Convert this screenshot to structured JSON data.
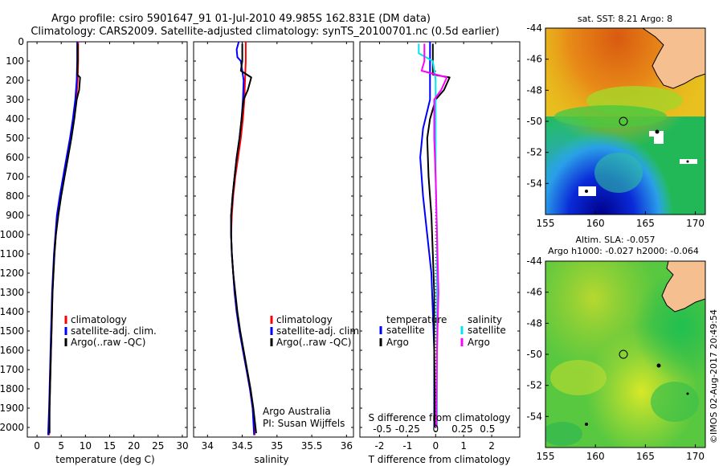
{
  "header": {
    "line1": "Argo profile: csiro 5901647_91 01-Jul-2010 49.985S 162.831E (DM data)",
    "line2": "Climatology: CARS2009. Satellite-adjusted climatology: synTS_20100701.nc (0.5d earlier)"
  },
  "colors": {
    "climatology": "#ff0000",
    "satellite": "#0000ff",
    "argo": "#000000",
    "salinity_satellite": "#00e5ee",
    "salinity_argo": "#ff00ff",
    "land": "#f5bf90"
  },
  "depth_ticks": [
    0,
    100,
    200,
    300,
    400,
    500,
    600,
    700,
    800,
    900,
    1000,
    1100,
    1200,
    1300,
    1400,
    1500,
    1600,
    1700,
    1800,
    1900,
    2000
  ],
  "chart_data": [
    {
      "type": "line",
      "panel": "temperature",
      "xlabel": "temperature (deg C)",
      "xlim": [
        -2,
        31
      ],
      "ylim": [
        2050,
        0
      ],
      "xticks": [
        0,
        5,
        10,
        15,
        20,
        25,
        30
      ],
      "legend": [
        "climatology",
        "satellite-adj. clim.",
        "Argo(..raw -QC)"
      ],
      "series": [
        {
          "name": "climatology",
          "color_key": "climatology",
          "points": [
            [
              8.5,
              0
            ],
            [
              8.5,
              100
            ],
            [
              8.4,
              200
            ],
            [
              8.1,
              300
            ],
            [
              7.6,
              400
            ],
            [
              7.0,
              500
            ],
            [
              6.3,
              600
            ],
            [
              5.6,
              700
            ],
            [
              4.9,
              800
            ],
            [
              4.3,
              900
            ],
            [
              3.9,
              1000
            ],
            [
              3.6,
              1100
            ],
            [
              3.4,
              1200
            ],
            [
              3.2,
              1300
            ],
            [
              3.1,
              1400
            ],
            [
              3.0,
              1500
            ],
            [
              2.9,
              1600
            ],
            [
              2.8,
              1700
            ],
            [
              2.7,
              1800
            ],
            [
              2.6,
              1900
            ],
            [
              2.5,
              2040
            ]
          ]
        },
        {
          "name": "satellite-adj. clim.",
          "color_key": "satellite",
          "points": [
            [
              8.3,
              0
            ],
            [
              8.3,
              100
            ],
            [
              8.2,
              200
            ],
            [
              7.9,
              300
            ],
            [
              7.4,
              400
            ],
            [
              6.8,
              500
            ],
            [
              6.1,
              600
            ],
            [
              5.4,
              700
            ],
            [
              4.7,
              800
            ],
            [
              4.1,
              900
            ],
            [
              3.8,
              1000
            ],
            [
              3.5,
              1100
            ],
            [
              3.3,
              1200
            ],
            [
              3.1,
              1300
            ],
            [
              3.0,
              1400
            ],
            [
              2.9,
              1500
            ],
            [
              2.8,
              1600
            ],
            [
              2.7,
              1700
            ],
            [
              2.6,
              1800
            ],
            [
              2.5,
              1900
            ],
            [
              2.3,
              2040
            ]
          ]
        },
        {
          "name": "Argo(..raw -QC)",
          "color_key": "argo",
          "points": [
            [
              8.4,
              10
            ],
            [
              8.4,
              100
            ],
            [
              8.3,
              170
            ],
            [
              8.9,
              185
            ],
            [
              8.7,
              250
            ],
            [
              8.2,
              300
            ],
            [
              7.7,
              400
            ],
            [
              7.1,
              500
            ],
            [
              6.4,
              600
            ],
            [
              5.7,
              700
            ],
            [
              5.0,
              800
            ],
            [
              4.4,
              900
            ],
            [
              3.9,
              1000
            ],
            [
              3.6,
              1100
            ],
            [
              3.4,
              1200
            ],
            [
              3.2,
              1300
            ],
            [
              3.1,
              1400
            ],
            [
              3.0,
              1500
            ],
            [
              2.9,
              1600
            ],
            [
              2.8,
              1700
            ],
            [
              2.7,
              1800
            ],
            [
              2.6,
              1900
            ],
            [
              2.6,
              2030
            ]
          ]
        }
      ]
    },
    {
      "type": "line",
      "panel": "salinity",
      "xlabel": "salinity",
      "xlim": [
        33.8,
        36.1
      ],
      "ylim": [
        2050,
        0
      ],
      "xticks": [
        34,
        34.5,
        35,
        35.5,
        36
      ],
      "xticklabels": [
        "34",
        "34.5",
        "35",
        "35.5",
        "36"
      ],
      "legend": [
        "climatology",
        "satellite-adj. clim.",
        "Argo(..raw -QC)"
      ],
      "annotation": [
        "Argo Australia",
        "PI: Susan Wijffels"
      ],
      "series": [
        {
          "name": "climatology",
          "color_key": "climatology",
          "points": [
            [
              34.55,
              0
            ],
            [
              34.55,
              100
            ],
            [
              34.54,
              200
            ],
            [
              34.53,
              300
            ],
            [
              34.51,
              400
            ],
            [
              34.48,
              500
            ],
            [
              34.44,
              600
            ],
            [
              34.4,
              700
            ],
            [
              34.37,
              800
            ],
            [
              34.35,
              900
            ],
            [
              34.34,
              1000
            ],
            [
              34.35,
              1100
            ],
            [
              34.37,
              1200
            ],
            [
              34.39,
              1300
            ],
            [
              34.42,
              1400
            ],
            [
              34.46,
              1500
            ],
            [
              34.51,
              1600
            ],
            [
              34.56,
              1700
            ],
            [
              34.61,
              1800
            ],
            [
              34.65,
              1900
            ],
            [
              34.68,
              2040
            ]
          ]
        },
        {
          "name": "satellite-adj. clim.",
          "color_key": "satellite",
          "points": [
            [
              34.45,
              0
            ],
            [
              34.42,
              40
            ],
            [
              34.43,
              80
            ],
            [
              34.48,
              100
            ],
            [
              34.52,
              200
            ],
            [
              34.51,
              300
            ],
            [
              34.49,
              400
            ],
            [
              34.46,
              500
            ],
            [
              34.42,
              600
            ],
            [
              34.39,
              700
            ],
            [
              34.36,
              800
            ],
            [
              34.34,
              900
            ],
            [
              34.34,
              1000
            ],
            [
              34.35,
              1100
            ],
            [
              34.37,
              1200
            ],
            [
              34.39,
              1300
            ],
            [
              34.42,
              1400
            ],
            [
              34.46,
              1500
            ],
            [
              34.51,
              1600
            ],
            [
              34.56,
              1700
            ],
            [
              34.61,
              1800
            ],
            [
              34.65,
              1900
            ],
            [
              34.67,
              2040
            ]
          ]
        },
        {
          "name": "Argo(..raw -QC)",
          "color_key": "argo",
          "points": [
            [
              34.5,
              10
            ],
            [
              34.5,
              100
            ],
            [
              34.48,
              150
            ],
            [
              34.63,
              185
            ],
            [
              34.58,
              250
            ],
            [
              34.52,
              300
            ],
            [
              34.49,
              400
            ],
            [
              34.46,
              500
            ],
            [
              34.42,
              600
            ],
            [
              34.39,
              700
            ],
            [
              34.36,
              800
            ],
            [
              34.34,
              900
            ],
            [
              34.34,
              1000
            ],
            [
              34.35,
              1100
            ],
            [
              34.37,
              1200
            ],
            [
              34.4,
              1300
            ],
            [
              34.43,
              1400
            ],
            [
              34.47,
              1500
            ],
            [
              34.52,
              1600
            ],
            [
              34.57,
              1700
            ],
            [
              34.62,
              1800
            ],
            [
              34.66,
              1900
            ],
            [
              34.7,
              2030
            ]
          ]
        }
      ]
    },
    {
      "type": "line",
      "panel": "difference",
      "xlabel": "T difference from climatology",
      "xlim": [
        -2.7,
        3.0
      ],
      "ylim": [
        2050,
        0
      ],
      "xticks": [
        -2,
        -1,
        0,
        1,
        2
      ],
      "top_label": "S difference from climatology",
      "top_ticks": [
        "-0.5",
        "-0.25",
        "0",
        "0.25",
        "0.5"
      ],
      "legend": {
        "temperature": [
          "satellite",
          "Argo"
        ],
        "salinity": [
          "satellite",
          "Argo"
        ]
      },
      "series": [
        {
          "name": "temperature satellite",
          "color_key": "satellite",
          "points": [
            [
              -0.2,
              0
            ],
            [
              -0.2,
              100
            ],
            [
              -0.2,
              200
            ],
            [
              -0.2,
              300
            ],
            [
              -0.45,
              450
            ],
            [
              -0.55,
              600
            ],
            [
              -0.45,
              800
            ],
            [
              -0.3,
              1000
            ],
            [
              -0.15,
              1200
            ],
            [
              -0.1,
              1400
            ],
            [
              -0.05,
              1600
            ],
            [
              -0.05,
              1800
            ],
            [
              -0.05,
              2000
            ]
          ]
        },
        {
          "name": "temperature Argo",
          "color_key": "argo",
          "points": [
            [
              -0.1,
              10
            ],
            [
              -0.1,
              100
            ],
            [
              -0.1,
              170
            ],
            [
              0.5,
              185
            ],
            [
              0.3,
              250
            ],
            [
              0.0,
              300
            ],
            [
              -0.2,
              400
            ],
            [
              -0.3,
              500
            ],
            [
              -0.25,
              700
            ],
            [
              -0.15,
              900
            ],
            [
              -0.1,
              1100
            ],
            [
              -0.05,
              1300
            ],
            [
              -0.05,
              1600
            ],
            [
              -0.03,
              1800
            ],
            [
              -0.03,
              2000
            ]
          ]
        },
        {
          "name": "salinity satellite",
          "color_key": "salinity_satellite",
          "points": [
            [
              -0.6,
              10
            ],
            [
              -0.6,
              60
            ],
            [
              -0.1,
              100
            ],
            [
              0.0,
              200
            ],
            [
              0.0,
              400
            ],
            [
              0.0,
              700
            ],
            [
              0.05,
              1000
            ],
            [
              0.05,
              1300
            ],
            [
              0.05,
              1600
            ],
            [
              0.05,
              1900
            ],
            [
              0.05,
              2000
            ]
          ]
        },
        {
          "name": "salinity Argo",
          "color_key": "salinity_argo",
          "points": [
            [
              -0.4,
              10
            ],
            [
              -0.4,
              100
            ],
            [
              -0.5,
              150
            ],
            [
              0.4,
              185
            ],
            [
              0.2,
              250
            ],
            [
              -0.05,
              300
            ],
            [
              -0.05,
              500
            ],
            [
              0.0,
              700
            ],
            [
              0.05,
              1000
            ],
            [
              0.1,
              1300
            ],
            [
              0.05,
              1600
            ],
            [
              0.03,
              1900
            ],
            [
              0.03,
              2000
            ]
          ]
        }
      ]
    },
    {
      "type": "heatmap",
      "panel": "sst_map",
      "title": "sat. SST: 8.21  Argo: 8",
      "xlim": [
        155,
        171
      ],
      "ylim": [
        -56,
        -44
      ],
      "xticks": [
        155,
        160,
        165,
        170
      ],
      "yticks": [
        -44,
        -46,
        -48,
        -50,
        -52,
        -54
      ],
      "marker": {
        "lon": 162.8,
        "lat": -50.0
      },
      "land": "New Zealand (south-east corner)"
    },
    {
      "type": "heatmap",
      "panel": "sla_map",
      "title": "Altim. SLA: -0.057",
      "subtitle": "Argo h1000: -0.027 h2000: -0.064",
      "xlim": [
        155,
        171
      ],
      "ylim": [
        -56,
        -44
      ],
      "xticks": [
        155,
        160,
        165,
        170
      ],
      "yticks": [
        -44,
        -46,
        -48,
        -50,
        -52,
        -54
      ],
      "marker": {
        "lon": 162.8,
        "lat": -50.0
      },
      "land": "New Zealand (south-east corner)"
    }
  ],
  "credit": "©IMOS 02-Aug-2017 20:49:54"
}
